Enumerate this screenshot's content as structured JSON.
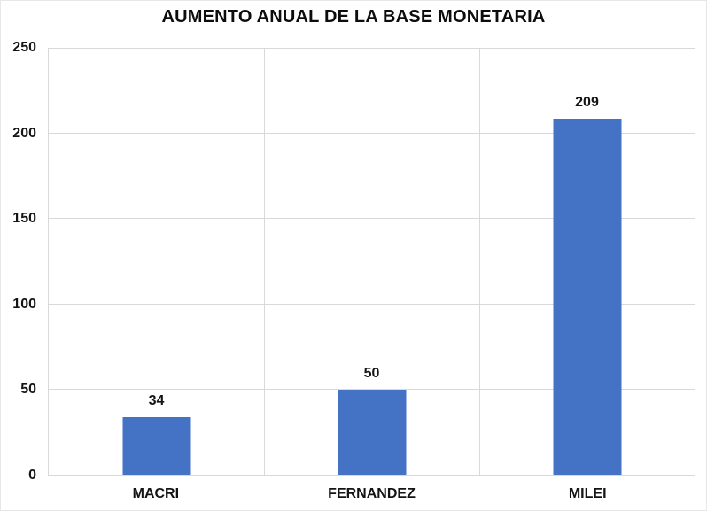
{
  "chart_data": {
    "type": "bar",
    "title": "AUMENTO ANUAL DE LA BASE MONETARIA",
    "categories": [
      "MACRI",
      "FERNANDEZ",
      "MILEI"
    ],
    "values": [
      34,
      50,
      209
    ],
    "xlabel": "",
    "ylabel": "",
    "ylim": [
      0,
      250
    ],
    "yticks": [
      0,
      50,
      100,
      150,
      200,
      250
    ],
    "legend": "none",
    "grid": {
      "horizontal": true,
      "vertical": true
    },
    "colors": {
      "bar": "#4472C4",
      "gridline": "#D9D9D9",
      "text": "#141414",
      "background": "#FFFFFF"
    }
  }
}
